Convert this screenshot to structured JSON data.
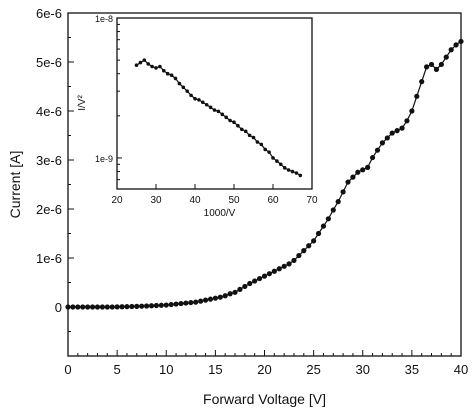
{
  "chart_data": [
    {
      "type": "line",
      "xlabel": "Forward Voltage [V]",
      "ylabel": "Current [A]",
      "xlim": [
        0,
        40
      ],
      "ylim": [
        -1e-06,
        6e-06
      ],
      "x_ticks": [
        0,
        5,
        10,
        15,
        20,
        25,
        30,
        35,
        40
      ],
      "x_tick_labels": [
        "0",
        "5",
        "10",
        "15",
        "20",
        "25",
        "30",
        "35",
        "40"
      ],
      "y_ticks": [
        0,
        1e-06,
        2e-06,
        3e-06,
        4e-06,
        5e-06,
        6e-06
      ],
      "y_tick_labels": [
        "0",
        "1e-6",
        "2e-6",
        "3e-6",
        "4e-6",
        "5e-6",
        "6e-6"
      ],
      "grid": false,
      "series": [
        {
          "x": [
            0,
            0.5,
            1,
            1.5,
            2,
            2.5,
            3,
            3.5,
            4,
            4.5,
            5,
            5.5,
            6,
            6.5,
            7,
            7.5,
            8,
            8.5,
            9,
            9.5,
            10,
            10.5,
            11,
            11.5,
            12,
            12.5,
            13,
            13.5,
            14,
            14.5,
            15,
            15.5,
            16,
            16.5,
            17,
            17.5,
            18,
            18.5,
            19,
            19.5,
            20,
            20.5,
            21,
            21.5,
            22,
            22.5,
            23,
            23.5,
            24,
            24.5,
            25,
            25.5,
            26,
            26.5,
            27,
            27.5,
            28,
            28.5,
            29,
            29.5,
            30,
            30.5,
            31,
            31.5,
            32,
            32.5,
            33,
            33.5,
            34,
            34.5,
            35,
            35.5,
            36,
            36.5,
            37,
            37.5,
            38,
            38.5,
            39,
            39.5,
            40
          ],
          "y": [
            0,
            0,
            0,
            0,
            0,
            0,
            0,
            0,
            0,
            0,
            3e-09,
            5e-09,
            7e-09,
            1e-08,
            1.3e-08,
            1.6e-08,
            2e-08,
            2.5e-08,
            3e-08,
            3.5e-08,
            4e-08,
            5e-08,
            6e-08,
            7e-08,
            8e-08,
            9e-08,
            1e-07,
            1.2e-07,
            1.4e-07,
            1.6e-07,
            1.8e-07,
            2e-07,
            2.3e-07,
            2.7e-07,
            3e-07,
            3.6e-07,
            4.2e-07,
            4.8e-07,
            5.3e-07,
            5.8e-07,
            6.3e-07,
            6.8e-07,
            7.3e-07,
            7.8e-07,
            8.3e-07,
            8.8e-07,
            9.5e-07,
            1.05e-06,
            1.15e-06,
            1.25e-06,
            1.35e-06,
            1.5e-06,
            1.65e-06,
            1.8e-06,
            1.98e-06,
            2.15e-06,
            2.35e-06,
            2.55e-06,
            2.65e-06,
            2.75e-06,
            2.8e-06,
            2.85e-06,
            3.05e-06,
            3.2e-06,
            3.35e-06,
            3.45e-06,
            3.55e-06,
            3.6e-06,
            3.65e-06,
            3.8e-06,
            4e-06,
            4.3e-06,
            4.6e-06,
            4.9e-06,
            4.95e-06,
            4.85e-06,
            4.95e-06,
            5.1e-06,
            5.25e-06,
            5.35e-06,
            5.42e-06
          ]
        }
      ]
    },
    {
      "type": "line",
      "xlabel": "1000/V",
      "ylabel": "I/V²",
      "y_scale": "log",
      "xlim": [
        20,
        70
      ],
      "ylim": [
        6e-10,
        1e-08
      ],
      "x_ticks": [
        20,
        30,
        40,
        50,
        60,
        70
      ],
      "x_tick_labels": [
        "20",
        "30",
        "40",
        "50",
        "60",
        "70"
      ],
      "y_ticks": [
        1e-09,
        1e-08
      ],
      "y_tick_labels": [
        "1e-9",
        "1e-8"
      ],
      "grid": false,
      "series": [
        {
          "x": [
            25,
            26,
            27,
            28,
            29,
            30,
            31,
            32,
            33,
            34,
            35,
            36,
            37,
            38,
            39,
            40,
            41,
            42,
            43,
            44,
            45,
            46,
            47,
            48,
            49,
            50,
            51,
            52,
            53,
            54,
            55,
            56,
            57,
            58,
            59,
            60,
            61,
            62,
            63,
            64,
            65,
            66,
            67
          ],
          "y": [
            4.6e-09,
            4.8e-09,
            5e-09,
            4.7e-09,
            4.5e-09,
            4.4e-09,
            4.5e-09,
            4.2e-09,
            4e-09,
            3.9e-09,
            3.7e-09,
            3.4e-09,
            3.2e-09,
            3e-09,
            2.8e-09,
            2.65e-09,
            2.6e-09,
            2.5e-09,
            2.4e-09,
            2.3e-09,
            2.2e-09,
            2.15e-09,
            2.05e-09,
            1.95e-09,
            1.85e-09,
            1.8e-09,
            1.7e-09,
            1.6e-09,
            1.55e-09,
            1.45e-09,
            1.4e-09,
            1.3e-09,
            1.25e-09,
            1.15e-09,
            1.1e-09,
            1e-09,
            9.5e-10,
            9e-10,
            8.5e-10,
            8.2e-10,
            8e-10,
            7.8e-10,
            7.5e-10
          ]
        }
      ]
    }
  ]
}
